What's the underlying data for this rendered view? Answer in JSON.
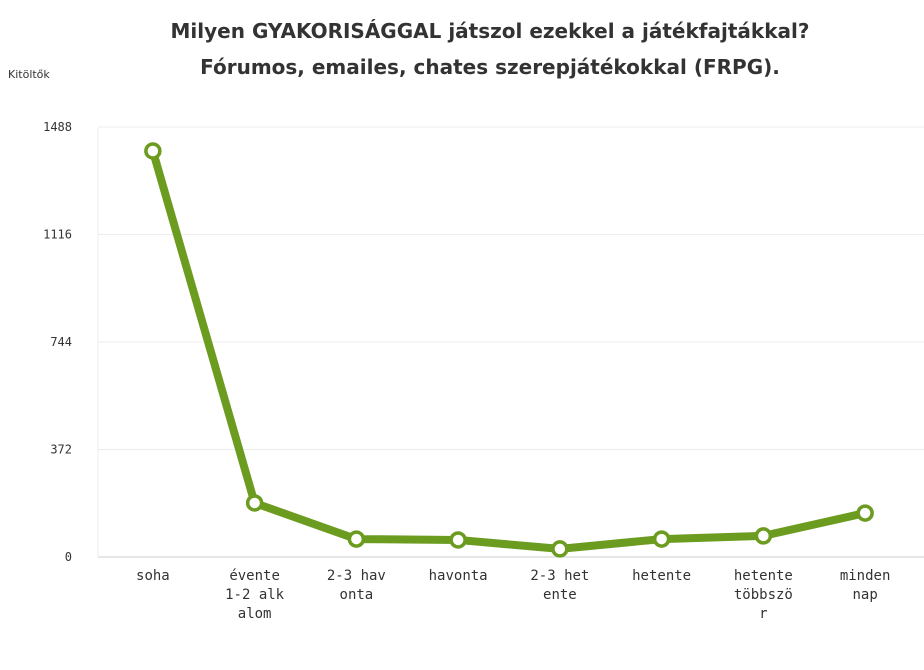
{
  "chart_data": {
    "type": "line",
    "title": "Milyen GYAKORISÁGGAL játszol ezekkel a játékfajtákkal?",
    "subtitle": "Fórumos, emailes, chates szerepjátékokkal (FRPG).",
    "y_label": "Kitöltők",
    "categories": [
      "soha",
      "évente 1-2 alkalom",
      "2-3 havonta",
      "havonta",
      "2-3 hetente",
      "hetente",
      "hetente többször",
      "minden nap"
    ],
    "series": [
      {
        "name": "Kitöltők",
        "color": "#6b9c1f",
        "values": [
          1405,
          187,
          62,
          59,
          28,
          62,
          73,
          152
        ]
      }
    ],
    "ylim": [
      0,
      1488
    ],
    "yticks": [
      0,
      372,
      744,
      1116,
      1488
    ],
    "grid": true
  }
}
